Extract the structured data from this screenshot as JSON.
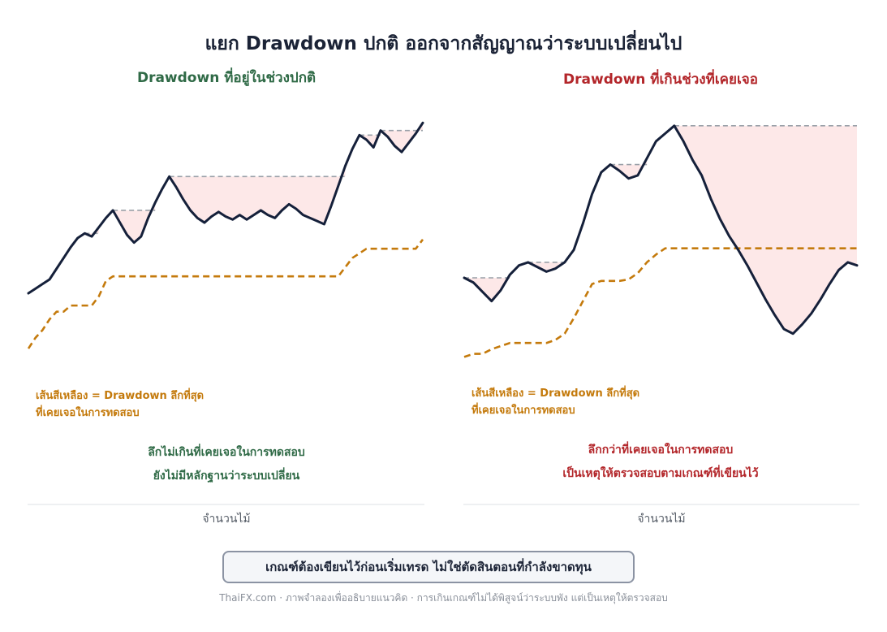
{
  "title": "แยก Drawdown ปกติ ออกจากสัญญาณว่าระบบเปลี่ยนไป",
  "colors": {
    "equity": "#15203a",
    "max_dd_line": "#c47a0c",
    "peak_line": "#9aa0a8",
    "dd_fill": "#fde8e8",
    "normal": "#2f6a46",
    "warning": "#b3262a"
  },
  "chart_data": [
    {
      "type": "line",
      "title": "Drawdown ที่อยู่ในช่วงปกติ",
      "xlabel": "จำนวนไม้",
      "ylabel": "",
      "series": [
        {
          "values": [
            0.0,
            0.3,
            0.6,
            0.9,
            1.6,
            2.3,
            3.0,
            3.6,
            3.9,
            3.7,
            4.3,
            4.9,
            5.4,
            4.6,
            3.8,
            3.3,
            3.7,
            4.9,
            5.9,
            6.8,
            7.6,
            6.9,
            6.1,
            5.4,
            4.9,
            4.6,
            5.0,
            5.3,
            5.0,
            4.8,
            5.1,
            4.8,
            5.1,
            5.4,
            5.1,
            4.9,
            5.4,
            5.8,
            5.5,
            5.1,
            4.9,
            4.7,
            4.5,
            5.7,
            7.0,
            8.3,
            9.4,
            10.3,
            10.0,
            9.5,
            10.6,
            10.2,
            9.6,
            9.2,
            9.8,
            10.4,
            11.1
          ]
        },
        {
          "values": [
            -3.6,
            -2.9,
            -2.4,
            -1.7,
            -1.2,
            -1.2,
            -0.8,
            -0.8,
            -0.8,
            -0.8,
            -0.2,
            0.8,
            1.1,
            1.1,
            1.1,
            1.1,
            1.1,
            1.1,
            1.1,
            1.1,
            1.1,
            1.1,
            1.1,
            1.1,
            1.1,
            1.1,
            1.1,
            1.1,
            1.1,
            1.1,
            1.1,
            1.1,
            1.1,
            1.1,
            1.1,
            1.1,
            1.1,
            1.1,
            1.1,
            1.1,
            1.1,
            1.1,
            1.1,
            1.1,
            1.1,
            1.7,
            2.3,
            2.6,
            2.9,
            2.9,
            2.9,
            2.9,
            2.9,
            2.9,
            2.9,
            2.9,
            3.5
          ]
        }
      ],
      "annotation": [
        "เส้นสีเหลือง = Drawdown ลึกที่สุด",
        "ที่เคยเจอในการทดสอบ"
      ],
      "message": [
        "ลึกไม่เกินที่เคยเจอในการทดสอบ",
        "ยังไม่มีหลักฐานว่าระบบเปลี่ยน"
      ],
      "grid": false
    },
    {
      "type": "line",
      "title": "Drawdown ที่เกินช่วงที่เคยเจอ",
      "xlabel": "จำนวนไม้",
      "ylabel": "",
      "series": [
        {
          "values": [
            0.0,
            -0.3,
            -0.9,
            -1.5,
            -0.8,
            0.2,
            0.8,
            1.0,
            0.7,
            0.4,
            0.6,
            1.0,
            1.8,
            3.5,
            5.4,
            6.8,
            7.3,
            6.9,
            6.4,
            6.6,
            7.7,
            8.8,
            9.3,
            9.8,
            8.8,
            7.6,
            6.6,
            5.1,
            3.8,
            2.7,
            1.8,
            0.8,
            -0.3,
            -1.4,
            -2.4,
            -3.3,
            -3.6,
            -3.0,
            -2.3,
            -1.4,
            -0.4,
            0.5,
            1.0,
            0.8
          ]
        },
        {
          "values": [
            -5.1,
            -4.9,
            -4.9,
            -4.6,
            -4.4,
            -4.2,
            -4.2,
            -4.2,
            -4.2,
            -4.2,
            -4.0,
            -3.6,
            -2.6,
            -1.5,
            -0.4,
            -0.2,
            -0.2,
            -0.2,
            -0.1,
            0.3,
            1.0,
            1.5,
            1.9,
            1.9,
            1.9,
            1.9,
            1.9,
            1.9,
            1.9,
            1.9,
            1.9,
            1.9,
            1.9,
            1.9,
            1.9,
            1.9,
            1.9,
            1.9,
            1.9,
            1.9,
            1.9,
            1.9,
            1.9,
            1.9
          ]
        }
      ],
      "annotation": [
        "เส้นสีเหลือง = Drawdown ลึกที่สุด",
        "ที่เคยเจอในการทดสอบ"
      ],
      "message": [
        "ลึกกว่าที่เคยเจอในการทดสอบ",
        "เป็นเหตุให้ตรวจสอบตามเกณฑ์ที่เขียนไว้"
      ],
      "grid": false
    }
  ],
  "rule": "เกณฑ์ต้องเขียนไว้ก่อนเริ่มเทรด ไม่ใช่ตัดสินตอนที่กำลังขาดทุน",
  "footer": "ThaiFX.com · ภาพจำลองเพื่ออธิบายแนวคิด · การเกินเกณฑ์ไม่ได้พิสูจน์ว่าระบบพัง แต่เป็นเหตุให้ตรวจสอบ"
}
